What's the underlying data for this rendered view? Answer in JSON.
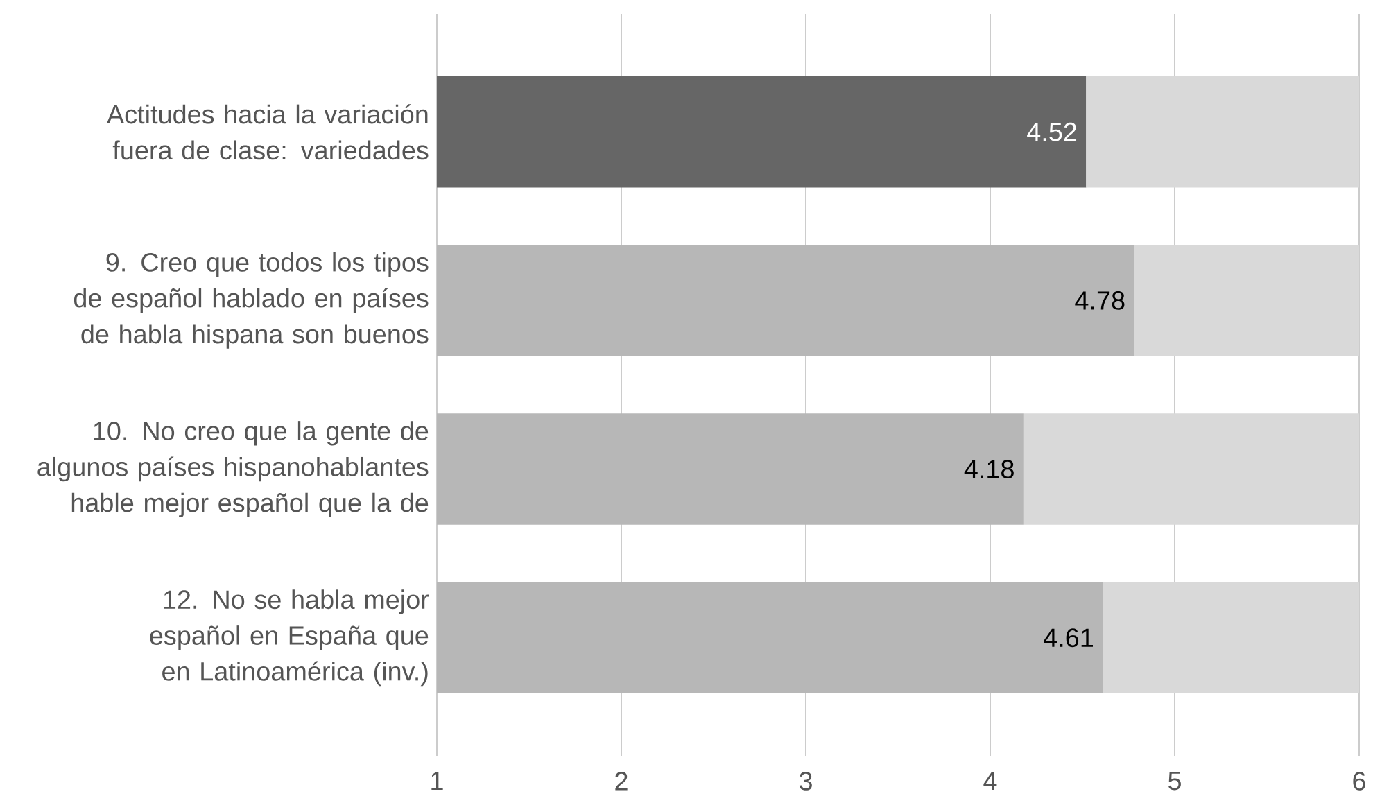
{
  "chart_data": {
    "type": "bar",
    "orientation": "horizontal",
    "stacked": true,
    "categories": [
      "Actitudes hacia la variación fuera de clase: variedades",
      "9. Creo que todos los tipos de español hablado en países de habla hispana son buenos",
      "10. No creo que la gente de algunos países hispanohablantes hable mejor español que la de",
      "12. No se habla mejor español en España que en Latinoamérica (inv.)"
    ],
    "series": [
      {
        "colors": [
          "#666666",
          "#b7b7b7",
          "#b7b7b7",
          "#b7b7b7"
        ],
        "values": [
          4.52,
          4.78,
          4.18,
          4.61
        ],
        "value_labels": [
          "4.52",
          "4.78",
          "4.18",
          "4.61"
        ]
      },
      {
        "color": "#d9d9d9",
        "values": [
          1.48,
          1.22,
          1.82,
          1.39
        ]
      }
    ],
    "xlim": [
      1,
      6
    ],
    "xticks": [
      1,
      2,
      3,
      4,
      5,
      6
    ],
    "grid": "x"
  }
}
